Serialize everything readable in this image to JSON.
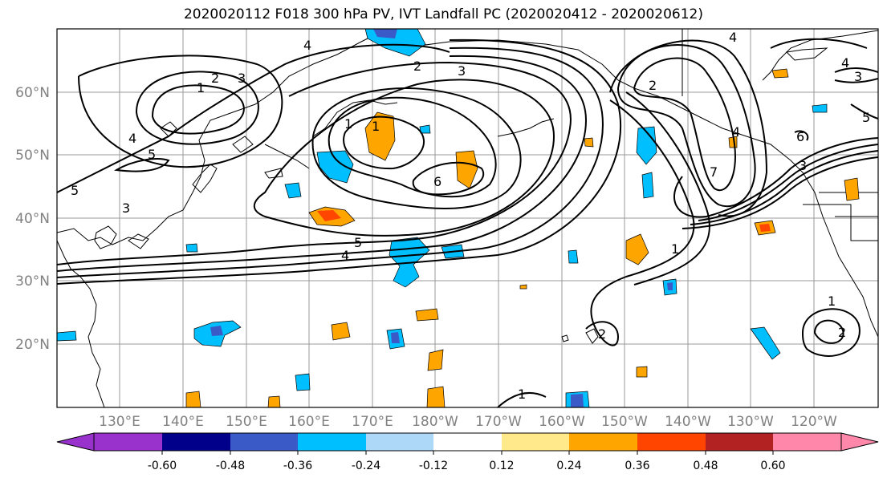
{
  "title": "2020020112 F018 300 hPa PV, IVT Landfall PC (2020020412 - 2020020612)",
  "lat_labels": [
    "60°N",
    "50°N",
    "40°N",
    "30°N",
    "20°N"
  ],
  "lon_labels": [
    "130°E",
    "140°E",
    "150°E",
    "160°E",
    "170°E",
    "180°W",
    "170°W",
    "160°W",
    "150°W",
    "140°W",
    "130°W",
    "120°W"
  ],
  "colorbar": {
    "colors": [
      "#9932CC",
      "#00008B",
      "#3A5BC7",
      "#00BFFF",
      "#ADD8F7",
      "#FFFFFF",
      "#FFE98A",
      "#FFA500",
      "#FF4500",
      "#B22222",
      "#FF88AA"
    ],
    "tick_labels": [
      "-0.60",
      "-0.48",
      "-0.36",
      "-0.24",
      "-0.12",
      "0.12",
      "0.24",
      "0.36",
      "0.48",
      "0.60"
    ]
  },
  "contour_labels": [
    "4",
    "2",
    "1",
    "3",
    "3",
    "2",
    "4",
    "5",
    "5",
    "3",
    "1",
    "1",
    "6",
    "5",
    "4",
    "4",
    "4",
    "3",
    "7",
    "6",
    "1",
    "1",
    "2",
    "1",
    "2",
    "2",
    "4",
    "3",
    "5"
  ]
}
